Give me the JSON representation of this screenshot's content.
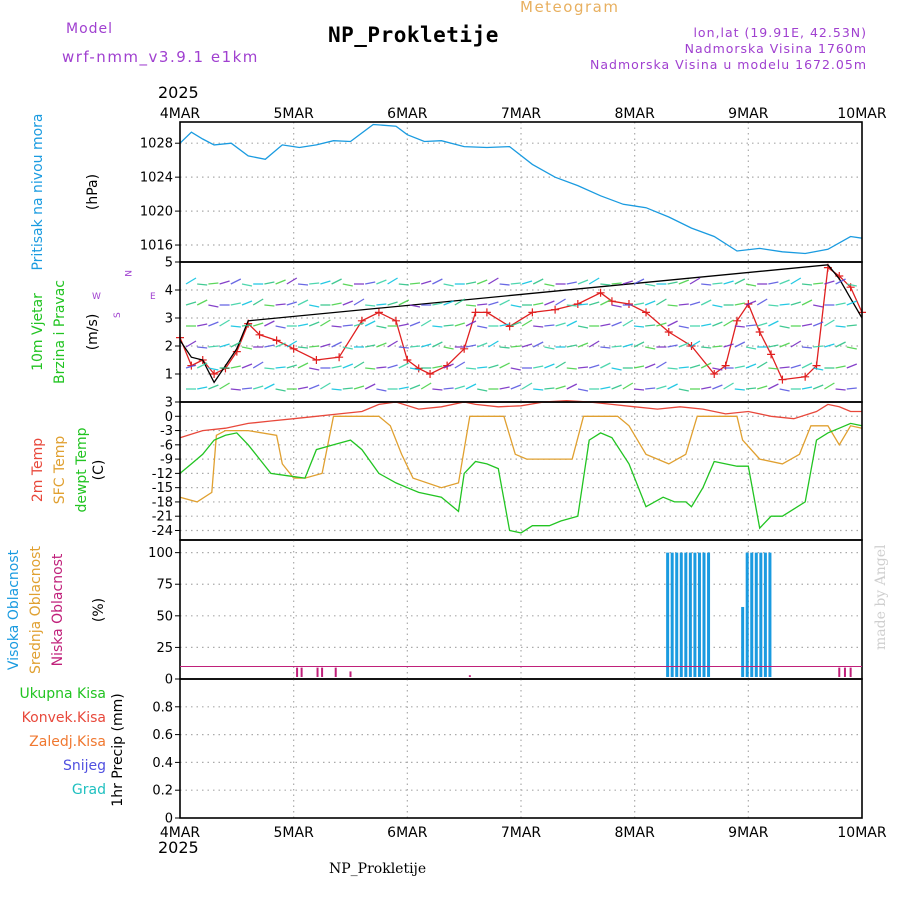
{
  "header": {
    "model_label": "Model",
    "model_name": "wrf-nmm_v3.9.1 e1km",
    "title": "NP_Prokletije",
    "product": "Meteogram",
    "lonlat": "lon,lat (19.91E, 42.53N)",
    "elevation": "Nadmorska Visina 1760m",
    "model_elevation": "Nadmorska Visina u modelu 1672.05m"
  },
  "footer": {
    "station": "NP_Prokletije",
    "credit": "made by Angel"
  },
  "colors": {
    "pressure": "#1a9be0",
    "temp2m": "#e8483b",
    "sfc": "#e0a030",
    "dewpt": "#22c422",
    "purple_text": "#a040d0",
    "meteogram": "#e8b060"
  },
  "chart_data": [
    {
      "type": "line",
      "name": "pressure-panel",
      "ylabel": "Pritisak na nivou mora",
      "unit": "(hPa)",
      "ylim": [
        1014,
        1030.5
      ],
      "yticks": [
        1016,
        1020,
        1024,
        1028
      ],
      "grid": true,
      "series": [
        {
          "name": "",
          "color": "#1a9be0",
          "x": [
            0,
            0.1,
            0.2,
            0.3,
            0.45,
            0.6,
            0.75,
            0.9,
            1.05,
            1.2,
            1.35,
            1.5,
            1.7,
            1.9,
            2.0,
            2.15,
            2.3,
            2.5,
            2.7,
            2.9,
            3.1,
            3.3,
            3.5,
            3.7,
            3.9,
            4.1,
            4.3,
            4.5,
            4.7,
            4.9,
            5.1,
            5.3,
            5.5,
            5.7,
            5.9,
            6.0
          ],
          "values": [
            1028,
            1029.3,
            1028.5,
            1027.8,
            1028,
            1026.5,
            1026.1,
            1027.8,
            1027.5,
            1027.8,
            1028.3,
            1028.2,
            1030.2,
            1030,
            1029,
            1028.2,
            1028.3,
            1027.6,
            1027.5,
            1027.6,
            1025.5,
            1024,
            1023,
            1021.8,
            1020.8,
            1020.4,
            1019.3,
            1018,
            1017,
            1015.3,
            1015.6,
            1015.2,
            1015,
            1015.5,
            1017,
            1016.8
          ]
        }
      ]
    },
    {
      "type": "line",
      "name": "wind-panel",
      "ylabel": "10m Vjetar Brzina i Pravac",
      "unit": "(m/s)",
      "ylim": [
        0,
        5
      ],
      "yticks": [
        1,
        2,
        3,
        4,
        5
      ],
      "compass": [
        "W",
        "E",
        "N",
        "S"
      ],
      "grid": true,
      "series": [
        {
          "name": "speed",
          "color": "#e02020",
          "x": [
            0,
            0.1,
            0.2,
            0.3,
            0.4,
            0.5,
            0.6,
            0.7,
            0.85,
            1.0,
            1.2,
            1.4,
            1.6,
            1.75,
            1.9,
            2.0,
            2.1,
            2.2,
            2.35,
            2.5,
            2.6,
            2.7,
            2.9,
            3.1,
            3.3,
            3.5,
            3.7,
            3.8,
            3.95,
            4.1,
            4.3,
            4.5,
            4.7,
            4.8,
            4.9,
            5.0,
            5.1,
            5.2,
            5.3,
            5.5,
            5.6,
            5.7,
            5.8,
            5.9,
            6.0
          ],
          "values": [
            2.3,
            1.3,
            1.5,
            1.0,
            1.2,
            1.8,
            2.8,
            2.4,
            2.2,
            1.9,
            1.5,
            1.6,
            2.9,
            3.2,
            2.9,
            1.5,
            1.2,
            1.0,
            1.3,
            1.9,
            3.2,
            3.2,
            2.7,
            3.2,
            3.3,
            3.5,
            3.9,
            3.6,
            3.5,
            3.2,
            2.5,
            2.0,
            1.0,
            1.3,
            2.9,
            3.5,
            2.5,
            1.7,
            0.8,
            0.9,
            1.3,
            4.8,
            4.5,
            4.1,
            3.2
          ]
        },
        {
          "name": "gust",
          "color": "#000000",
          "x": [
            0,
            0.1,
            0.2,
            0.3,
            0.4,
            0.5,
            0.6,
            5.7,
            5.8,
            5.9,
            6.0
          ],
          "values": [
            2.2,
            1.6,
            1.5,
            0.7,
            1.3,
            1.9,
            2.9,
            4.9,
            4.4,
            3.7,
            3.0
          ]
        }
      ]
    },
    {
      "type": "line",
      "name": "temperature-panel",
      "ylabel_lines": [
        "2m Temp",
        "SFC Temp",
        "dewpt Temp"
      ],
      "unit": "(C)",
      "ylim": [
        -26,
        3
      ],
      "yticks": [
        3,
        0,
        -3,
        -6,
        -9,
        -12,
        -15,
        -18,
        -21,
        -24
      ],
      "grid": true,
      "series": [
        {
          "name": "2m Temp",
          "color": "#e8483b",
          "x": [
            0,
            0.2,
            0.4,
            0.6,
            0.8,
            1.0,
            1.2,
            1.4,
            1.6,
            1.75,
            1.9,
            2.1,
            2.3,
            2.5,
            2.6,
            2.8,
            3.0,
            3.2,
            3.4,
            3.6,
            3.8,
            4.0,
            4.2,
            4.4,
            4.6,
            4.8,
            5.0,
            5.2,
            5.4,
            5.6,
            5.7,
            5.8,
            5.9,
            6.0
          ],
          "values": [
            -4.5,
            -3,
            -2.5,
            -1.5,
            -1,
            -0.5,
            0,
            0.5,
            1,
            2.5,
            3,
            1.5,
            2,
            3,
            2.5,
            2,
            2.2,
            3,
            3.3,
            3,
            2.5,
            2,
            1.5,
            2,
            1.5,
            0.5,
            1,
            0,
            -0.5,
            1,
            2.5,
            2,
            1,
            1
          ]
        },
        {
          "name": "SFC Temp",
          "color": "#e0a030",
          "x": [
            0,
            0.15,
            0.28,
            0.32,
            0.4,
            0.6,
            0.85,
            0.9,
            1.0,
            1.1,
            1.25,
            1.35,
            1.6,
            1.75,
            1.85,
            1.95,
            2.05,
            2.3,
            2.45,
            2.55,
            2.7,
            2.85,
            2.95,
            3.05,
            3.3,
            3.45,
            3.55,
            3.7,
            3.85,
            3.95,
            4.1,
            4.3,
            4.45,
            4.55,
            4.7,
            4.9,
            4.95,
            5.1,
            5.3,
            5.45,
            5.55,
            5.7,
            5.8,
            5.9,
            6.0
          ],
          "values": [
            -17,
            -18,
            -16,
            -4,
            -3,
            -3,
            -4,
            -10,
            -13,
            -13,
            -12,
            0,
            0,
            0,
            -2,
            -8,
            -13,
            -15,
            -14,
            0,
            0,
            0,
            -8,
            -9,
            -9,
            -9,
            0,
            0,
            0,
            -2,
            -8,
            -10,
            -8,
            0,
            0,
            0,
            -5,
            -9,
            -10,
            -8,
            -2,
            -2,
            -6,
            -2,
            -2.5
          ]
        },
        {
          "name": "dewpt Temp",
          "color": "#22c422",
          "x": [
            0,
            0.1,
            0.2,
            0.3,
            0.4,
            0.5,
            0.6,
            0.7,
            0.8,
            0.95,
            1.1,
            1.2,
            1.35,
            1.5,
            1.6,
            1.75,
            1.9,
            2.0,
            2.1,
            2.3,
            2.45,
            2.5,
            2.6,
            2.7,
            2.8,
            2.9,
            3.0,
            3.1,
            3.25,
            3.35,
            3.5,
            3.6,
            3.7,
            3.8,
            3.95,
            4.1,
            4.25,
            4.35,
            4.45,
            4.5,
            4.6,
            4.7,
            4.8,
            4.9,
            5.0,
            5.1,
            5.2,
            5.3,
            5.5,
            5.6,
            5.7,
            5.8,
            5.9,
            6.0
          ],
          "values": [
            -12,
            -10,
            -8,
            -5,
            -4,
            -3.5,
            -6,
            -9,
            -12,
            -12.5,
            -13,
            -7,
            -6,
            -5,
            -7,
            -12,
            -14,
            -15,
            -16,
            -17,
            -20,
            -12,
            -9.5,
            -10,
            -11,
            -24,
            -24.5,
            -23,
            -23,
            -22,
            -21,
            -5,
            -3.5,
            -4.5,
            -10,
            -19,
            -17,
            -18,
            -18,
            -19,
            -15,
            -9.5,
            -10,
            -10.5,
            -10.5,
            -23.5,
            -21,
            -21,
            -18,
            -5,
            -3.5,
            -2.5,
            -1.5,
            -2
          ]
        }
      ]
    },
    {
      "type": "bar",
      "name": "cloud-panel",
      "ylabel_lines": [
        "Visoka Oblacnost",
        "Srednja Oblacnost",
        "Niska Oblacnost"
      ],
      "unit": "(%)",
      "ylim": [
        0,
        110
      ],
      "yticks": [
        0,
        25,
        50,
        75,
        100
      ],
      "grid": true,
      "series": [
        {
          "name": "Visoka Oblacnost",
          "color": "#1a9be0",
          "x": [
            4.29,
            4.33,
            4.37,
            4.41,
            4.45,
            4.49,
            4.53,
            4.57,
            4.61,
            4.65,
            4.95,
            4.99,
            5.03,
            5.07,
            5.11,
            5.15,
            5.19
          ],
          "values": [
            100,
            100,
            100,
            100,
            100,
            100,
            100,
            100,
            100,
            100,
            57,
            100,
            100,
            100,
            100,
            100,
            100
          ]
        },
        {
          "name": "Niska Oblacnost",
          "color": "#c0207a",
          "x": [
            1.03,
            1.07,
            1.21,
            1.25,
            1.37,
            1.5,
            2.55,
            5.8,
            5.85,
            5.9
          ],
          "values": [
            9,
            9,
            9,
            9,
            9,
            6,
            3,
            9,
            9,
            9
          ]
        }
      ]
    },
    {
      "type": "bar",
      "name": "precip-panel",
      "ylabel_lines": [
        "Ukupna Kisa",
        "Konvek.Kisa",
        "Zaledj.Kisa",
        "Snijeg",
        "Grad"
      ],
      "legend_colors": [
        "#22c422",
        "#e8483b",
        "#f07830",
        "#5050e0",
        "#20c0c0"
      ],
      "unit": "1hr Precip (mm)",
      "ylim": [
        0,
        1
      ],
      "yticks": [
        0,
        0.2,
        0.4,
        0.6,
        0.8
      ],
      "grid": true,
      "series": []
    }
  ],
  "time_axis": {
    "year": "2025",
    "labels": [
      "4MAR",
      "5MAR",
      "6MAR",
      "7MAR",
      "8MAR",
      "9MAR",
      "10MAR"
    ]
  }
}
